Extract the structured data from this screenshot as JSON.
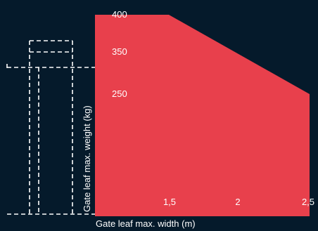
{
  "colors": {
    "background": "#051a2b",
    "area_fill": "#e8404c",
    "text": "#ffffff"
  },
  "chart_data": {
    "type": "area",
    "xlabel": "Gate leaf max. width (m)",
    "ylabel": "Gate leaf max. weight (kg)",
    "x_ticks": [
      {
        "value": 1.5,
        "label": "1,5"
      },
      {
        "value": 2,
        "label": "2"
      },
      {
        "value": 2.5,
        "label": "2,5"
      }
    ],
    "y_ticks": [
      {
        "value": 400,
        "label": "400"
      },
      {
        "value": 350,
        "label": "350"
      },
      {
        "value": 250,
        "label": "250"
      }
    ],
    "series": [
      {
        "x": [
          0,
          1,
          2.5
        ],
        "y": [
          400,
          400,
          250
        ]
      }
    ],
    "grid": false,
    "legend": "none"
  },
  "decoration": {
    "gate_icon": "dashed-gate-outline-icon"
  }
}
